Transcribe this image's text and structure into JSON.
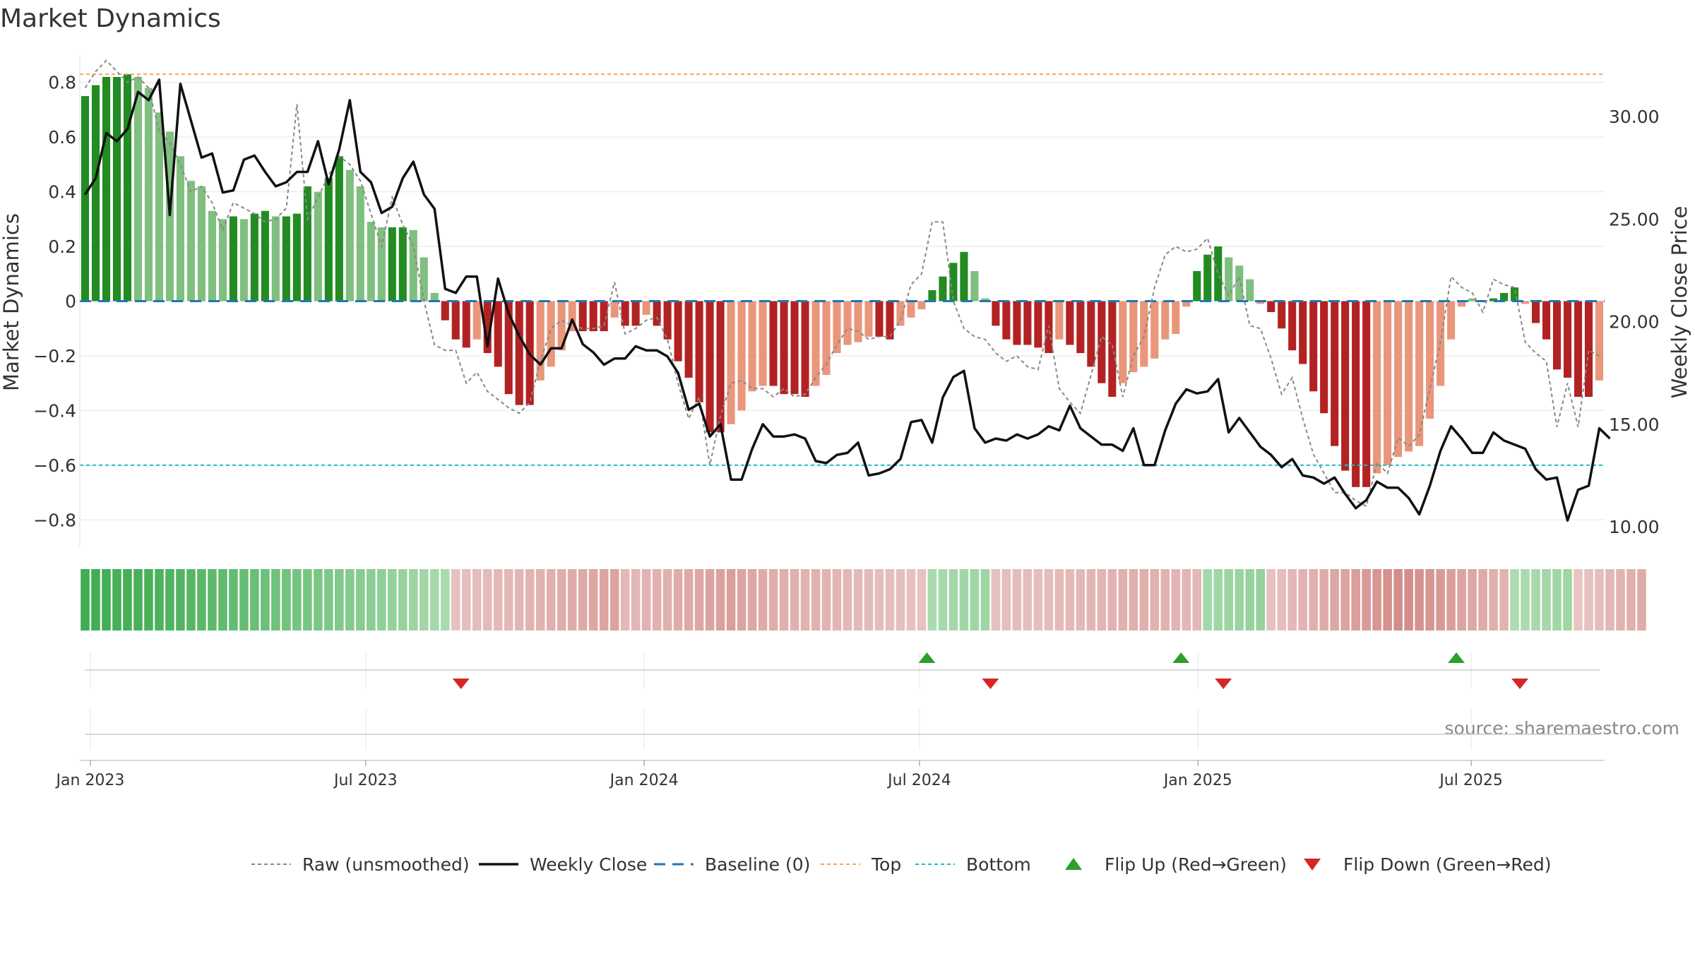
{
  "chart_data": {
    "type": "bar",
    "title": "Market Dynamics",
    "source": "source: sharemaestro.com",
    "ylabel_left": "Market Dynamics",
    "ylabel_right": "Weekly Close Price",
    "y_left_range": [
      -0.9,
      0.9
    ],
    "y_right_range": [
      9.0,
      33.0
    ],
    "y_left_ticks": [
      0.8,
      0.6,
      0.4,
      0.2,
      0,
      -0.2,
      -0.4,
      -0.6,
      -0.8
    ],
    "y_left_tick_labels": [
      "0.8",
      "0.6",
      "0.4",
      "0.2",
      "0",
      "−0.2",
      "−0.4",
      "−0.6",
      "−0.8"
    ],
    "y_right_ticks": [
      30,
      25,
      20,
      15,
      10
    ],
    "y_right_tick_labels": [
      "30.00",
      "25.00",
      "20.00",
      "15.00",
      "10.00"
    ],
    "x_ticks": [
      {
        "label": "Jan 2023",
        "week": 1
      },
      {
        "label": "Jul 2023",
        "week": 27
      },
      {
        "label": "Jan 2024",
        "week": 53.3
      },
      {
        "label": "Jul 2024",
        "week": 79.3
      },
      {
        "label": "Jan 2025",
        "week": 105.6
      },
      {
        "label": "Jul 2025",
        "week": 131.4
      }
    ],
    "top_level": 0.83,
    "bottom_level": -0.6,
    "baseline": 0,
    "dynamics": [
      0.75,
      0.79,
      0.82,
      0.82,
      0.83,
      0.82,
      0.78,
      0.69,
      0.62,
      0.53,
      0.44,
      0.42,
      0.33,
      0.3,
      0.31,
      0.3,
      0.32,
      0.33,
      0.31,
      0.31,
      0.32,
      0.42,
      0.4,
      0.45,
      0.53,
      0.48,
      0.42,
      0.29,
      0.27,
      0.27,
      0.27,
      0.26,
      0.16,
      0.03,
      -0.07,
      -0.14,
      -0.17,
      -0.14,
      -0.19,
      -0.24,
      -0.34,
      -0.38,
      -0.38,
      -0.29,
      -0.24,
      -0.18,
      -0.11,
      -0.11,
      -0.11,
      -0.11,
      -0.06,
      -0.09,
      -0.09,
      -0.05,
      -0.09,
      -0.14,
      -0.22,
      -0.28,
      -0.37,
      -0.48,
      -0.48,
      -0.45,
      -0.4,
      -0.33,
      -0.31,
      -0.31,
      -0.34,
      -0.34,
      -0.35,
      -0.31,
      -0.27,
      -0.19,
      -0.16,
      -0.15,
      -0.13,
      -0.13,
      -0.14,
      -0.09,
      -0.06,
      -0.03,
      0.04,
      0.09,
      0.14,
      0.18,
      0.11,
      0.01,
      -0.09,
      -0.14,
      -0.16,
      -0.16,
      -0.17,
      -0.19,
      -0.14,
      -0.16,
      -0.19,
      -0.24,
      -0.3,
      -0.35,
      -0.3,
      -0.26,
      -0.24,
      -0.21,
      -0.14,
      -0.12,
      -0.02,
      0.11,
      0.17,
      0.2,
      0.16,
      0.13,
      0.08,
      -0.01,
      -0.04,
      -0.1,
      -0.18,
      -0.23,
      -0.33,
      -0.41,
      -0.53,
      -0.62,
      -0.68,
      -0.68,
      -0.63,
      -0.6,
      -0.57,
      -0.55,
      -0.53,
      -0.43,
      -0.31,
      -0.14,
      -0.02,
      0.01,
      0.0,
      0.01,
      0.03,
      0.05,
      -0.01,
      -0.08,
      -0.14,
      -0.25,
      -0.28,
      -0.35,
      -0.35,
      -0.29
    ],
    "raw": [
      0.78,
      0.84,
      0.88,
      0.84,
      0.8,
      0.82,
      0.78,
      0.62,
      0.58,
      0.5,
      0.4,
      0.42,
      0.36,
      0.26,
      0.36,
      0.34,
      0.32,
      0.29,
      0.3,
      0.34,
      0.72,
      0.3,
      0.38,
      0.46,
      0.53,
      0.5,
      0.44,
      0.32,
      0.2,
      0.38,
      0.28,
      0.2,
      0.0,
      -0.16,
      -0.18,
      -0.18,
      -0.3,
      -0.26,
      -0.33,
      -0.36,
      -0.39,
      -0.41,
      -0.37,
      -0.22,
      -0.1,
      -0.07,
      -0.09,
      -0.1,
      -0.1,
      -0.09,
      0.07,
      -0.12,
      -0.1,
      -0.07,
      -0.06,
      -0.14,
      -0.3,
      -0.43,
      -0.35,
      -0.6,
      -0.42,
      -0.3,
      -0.29,
      -0.32,
      -0.32,
      -0.35,
      -0.32,
      -0.35,
      -0.34,
      -0.28,
      -0.23,
      -0.16,
      -0.1,
      -0.11,
      -0.14,
      -0.13,
      -0.13,
      -0.07,
      0.06,
      0.1,
      0.29,
      0.29,
      0.0,
      -0.1,
      -0.13,
      -0.14,
      -0.19,
      -0.22,
      -0.2,
      -0.24,
      -0.25,
      -0.09,
      -0.32,
      -0.37,
      -0.41,
      -0.27,
      -0.13,
      -0.16,
      -0.35,
      -0.2,
      -0.13,
      0.05,
      0.17,
      0.2,
      0.18,
      0.19,
      0.23,
      0.1,
      0.02,
      0.09,
      -0.09,
      -0.1,
      -0.21,
      -0.34,
      -0.28,
      -0.43,
      -0.56,
      -0.63,
      -0.7,
      -0.7,
      -0.73,
      -0.75,
      -0.59,
      -0.63,
      -0.5,
      -0.53,
      -0.49,
      -0.32,
      -0.15,
      0.09,
      0.05,
      0.03,
      -0.04,
      0.08,
      0.06,
      0.05,
      -0.15,
      -0.19,
      -0.22,
      -0.46,
      -0.3,
      -0.46,
      -0.18,
      -0.2
    ],
    "close": [
      26.2,
      27.0,
      29.2,
      28.8,
      29.4,
      31.2,
      30.8,
      31.8,
      25.2,
      31.6,
      29.8,
      28.0,
      28.2,
      26.3,
      26.4,
      27.9,
      28.1,
      27.3,
      26.6,
      26.8,
      27.3,
      27.3,
      28.8,
      26.7,
      28.4,
      30.8,
      27.3,
      26.8,
      25.3,
      25.6,
      27.0,
      27.8,
      26.2,
      25.5,
      21.6,
      21.4,
      22.2,
      22.2,
      18.8,
      22.1,
      20.4,
      19.3,
      18.4,
      17.9,
      18.7,
      18.7,
      20.1,
      18.9,
      18.5,
      17.9,
      18.2,
      18.2,
      18.8,
      18.6,
      18.6,
      18.3,
      17.5,
      15.7,
      16.0,
      14.4,
      15.0,
      12.3,
      12.3,
      13.8,
      15.0,
      14.4,
      14.4,
      14.5,
      14.3,
      13.2,
      13.1,
      13.5,
      13.6,
      14.1,
      12.5,
      12.6,
      12.8,
      13.3,
      15.1,
      15.2,
      14.1,
      16.3,
      17.3,
      17.6,
      14.8,
      14.1,
      14.3,
      14.2,
      14.5,
      14.3,
      14.5,
      14.9,
      14.7,
      15.9,
      14.8,
      14.4,
      14.0,
      14.0,
      13.7,
      14.8,
      13.0,
      13.0,
      14.7,
      16.0,
      16.7,
      16.5,
      16.6,
      17.2,
      14.6,
      15.3,
      14.6,
      13.9,
      13.5,
      12.9,
      13.3,
      12.5,
      12.4,
      12.1,
      12.4,
      11.6,
      10.9,
      11.3,
      12.2,
      11.9,
      11.9,
      11.4,
      10.6,
      12.0,
      13.7,
      14.9,
      14.3,
      13.6,
      13.6,
      14.6,
      14.2,
      14.0,
      13.8,
      12.8,
      12.3,
      12.4,
      10.3,
      11.8,
      12.0,
      14.8,
      14.3
    ],
    "panel_color_values": [
      0.9,
      0.89,
      0.88,
      0.87,
      0.86,
      0.85,
      0.84,
      0.82,
      0.8,
      0.78,
      0.76,
      0.73,
      0.71,
      0.69,
      0.67,
      0.65,
      0.63,
      0.61,
      0.59,
      0.57,
      0.55,
      0.53,
      0.51,
      0.49,
      0.47,
      0.45,
      0.43,
      0.41,
      0.38,
      0.35,
      0.32,
      0.29,
      0.26,
      0.23,
      0.2,
      -0.2,
      -0.22,
      -0.25,
      -0.27,
      -0.28,
      -0.3,
      -0.32,
      -0.35,
      -0.37,
      -0.4,
      -0.43,
      -0.45,
      -0.47,
      -0.5,
      -0.52,
      -0.55,
      -0.3,
      -0.32,
      -0.35,
      -0.38,
      -0.4,
      -0.43,
      -0.47,
      -0.5,
      -0.53,
      -0.57,
      -0.6,
      -0.55,
      -0.5,
      -0.45,
      -0.42,
      -0.4,
      -0.38,
      -0.37,
      -0.36,
      -0.35,
      -0.33,
      -0.3,
      -0.28,
      -0.27,
      -0.26,
      -0.25,
      -0.22,
      -0.2,
      -0.18,
      0.2,
      0.22,
      0.24,
      0.26,
      0.27,
      0.28,
      -0.2,
      -0.22,
      -0.23,
      -0.24,
      -0.25,
      -0.26,
      -0.27,
      -0.28,
      -0.3,
      -0.32,
      -0.34,
      -0.36,
      -0.38,
      -0.4,
      -0.4,
      -0.38,
      -0.36,
      -0.34,
      -0.32,
      -0.3,
      0.25,
      0.27,
      0.29,
      0.31,
      0.33,
      0.34,
      -0.2,
      -0.25,
      -0.3,
      -0.35,
      -0.4,
      -0.45,
      -0.5,
      -0.55,
      -0.6,
      -0.65,
      -0.7,
      -0.75,
      -0.8,
      -0.8,
      -0.75,
      -0.7,
      -0.65,
      -0.6,
      -0.55,
      -0.5,
      -0.45,
      -0.4,
      -0.35,
      0.18,
      0.2,
      0.22,
      0.24,
      0.26,
      0.28,
      -0.15,
      -0.2,
      -0.25,
      -0.3,
      -0.35,
      -0.4,
      -0.45
    ],
    "flip_up_weeks": [
      80,
      104,
      130
    ],
    "flip_down_weeks": [
      36,
      86,
      108,
      136
    ],
    "series": [
      {
        "name": "Raw (unsmoothed)"
      },
      {
        "name": "Weekly Close"
      },
      {
        "name": "Baseline (0)"
      },
      {
        "name": "Top"
      },
      {
        "name": "Bottom"
      },
      {
        "name": "Flip Up (Red→Green)"
      },
      {
        "name": "Flip Down (Green→Red)"
      }
    ],
    "legend_position": "bottom-center",
    "grid": true,
    "colors": {
      "green_dark": "#228b22",
      "green_light": "#7fbf7f",
      "red_dark": "#b22222",
      "red_light": "#e9967a",
      "close_line": "#111111",
      "raw_line": "#888888",
      "baseline": "#1f77b4",
      "top": "#f4a460",
      "bottom": "#17becf",
      "flip_up": "#2ca02c",
      "flip_down": "#d62728"
    }
  }
}
